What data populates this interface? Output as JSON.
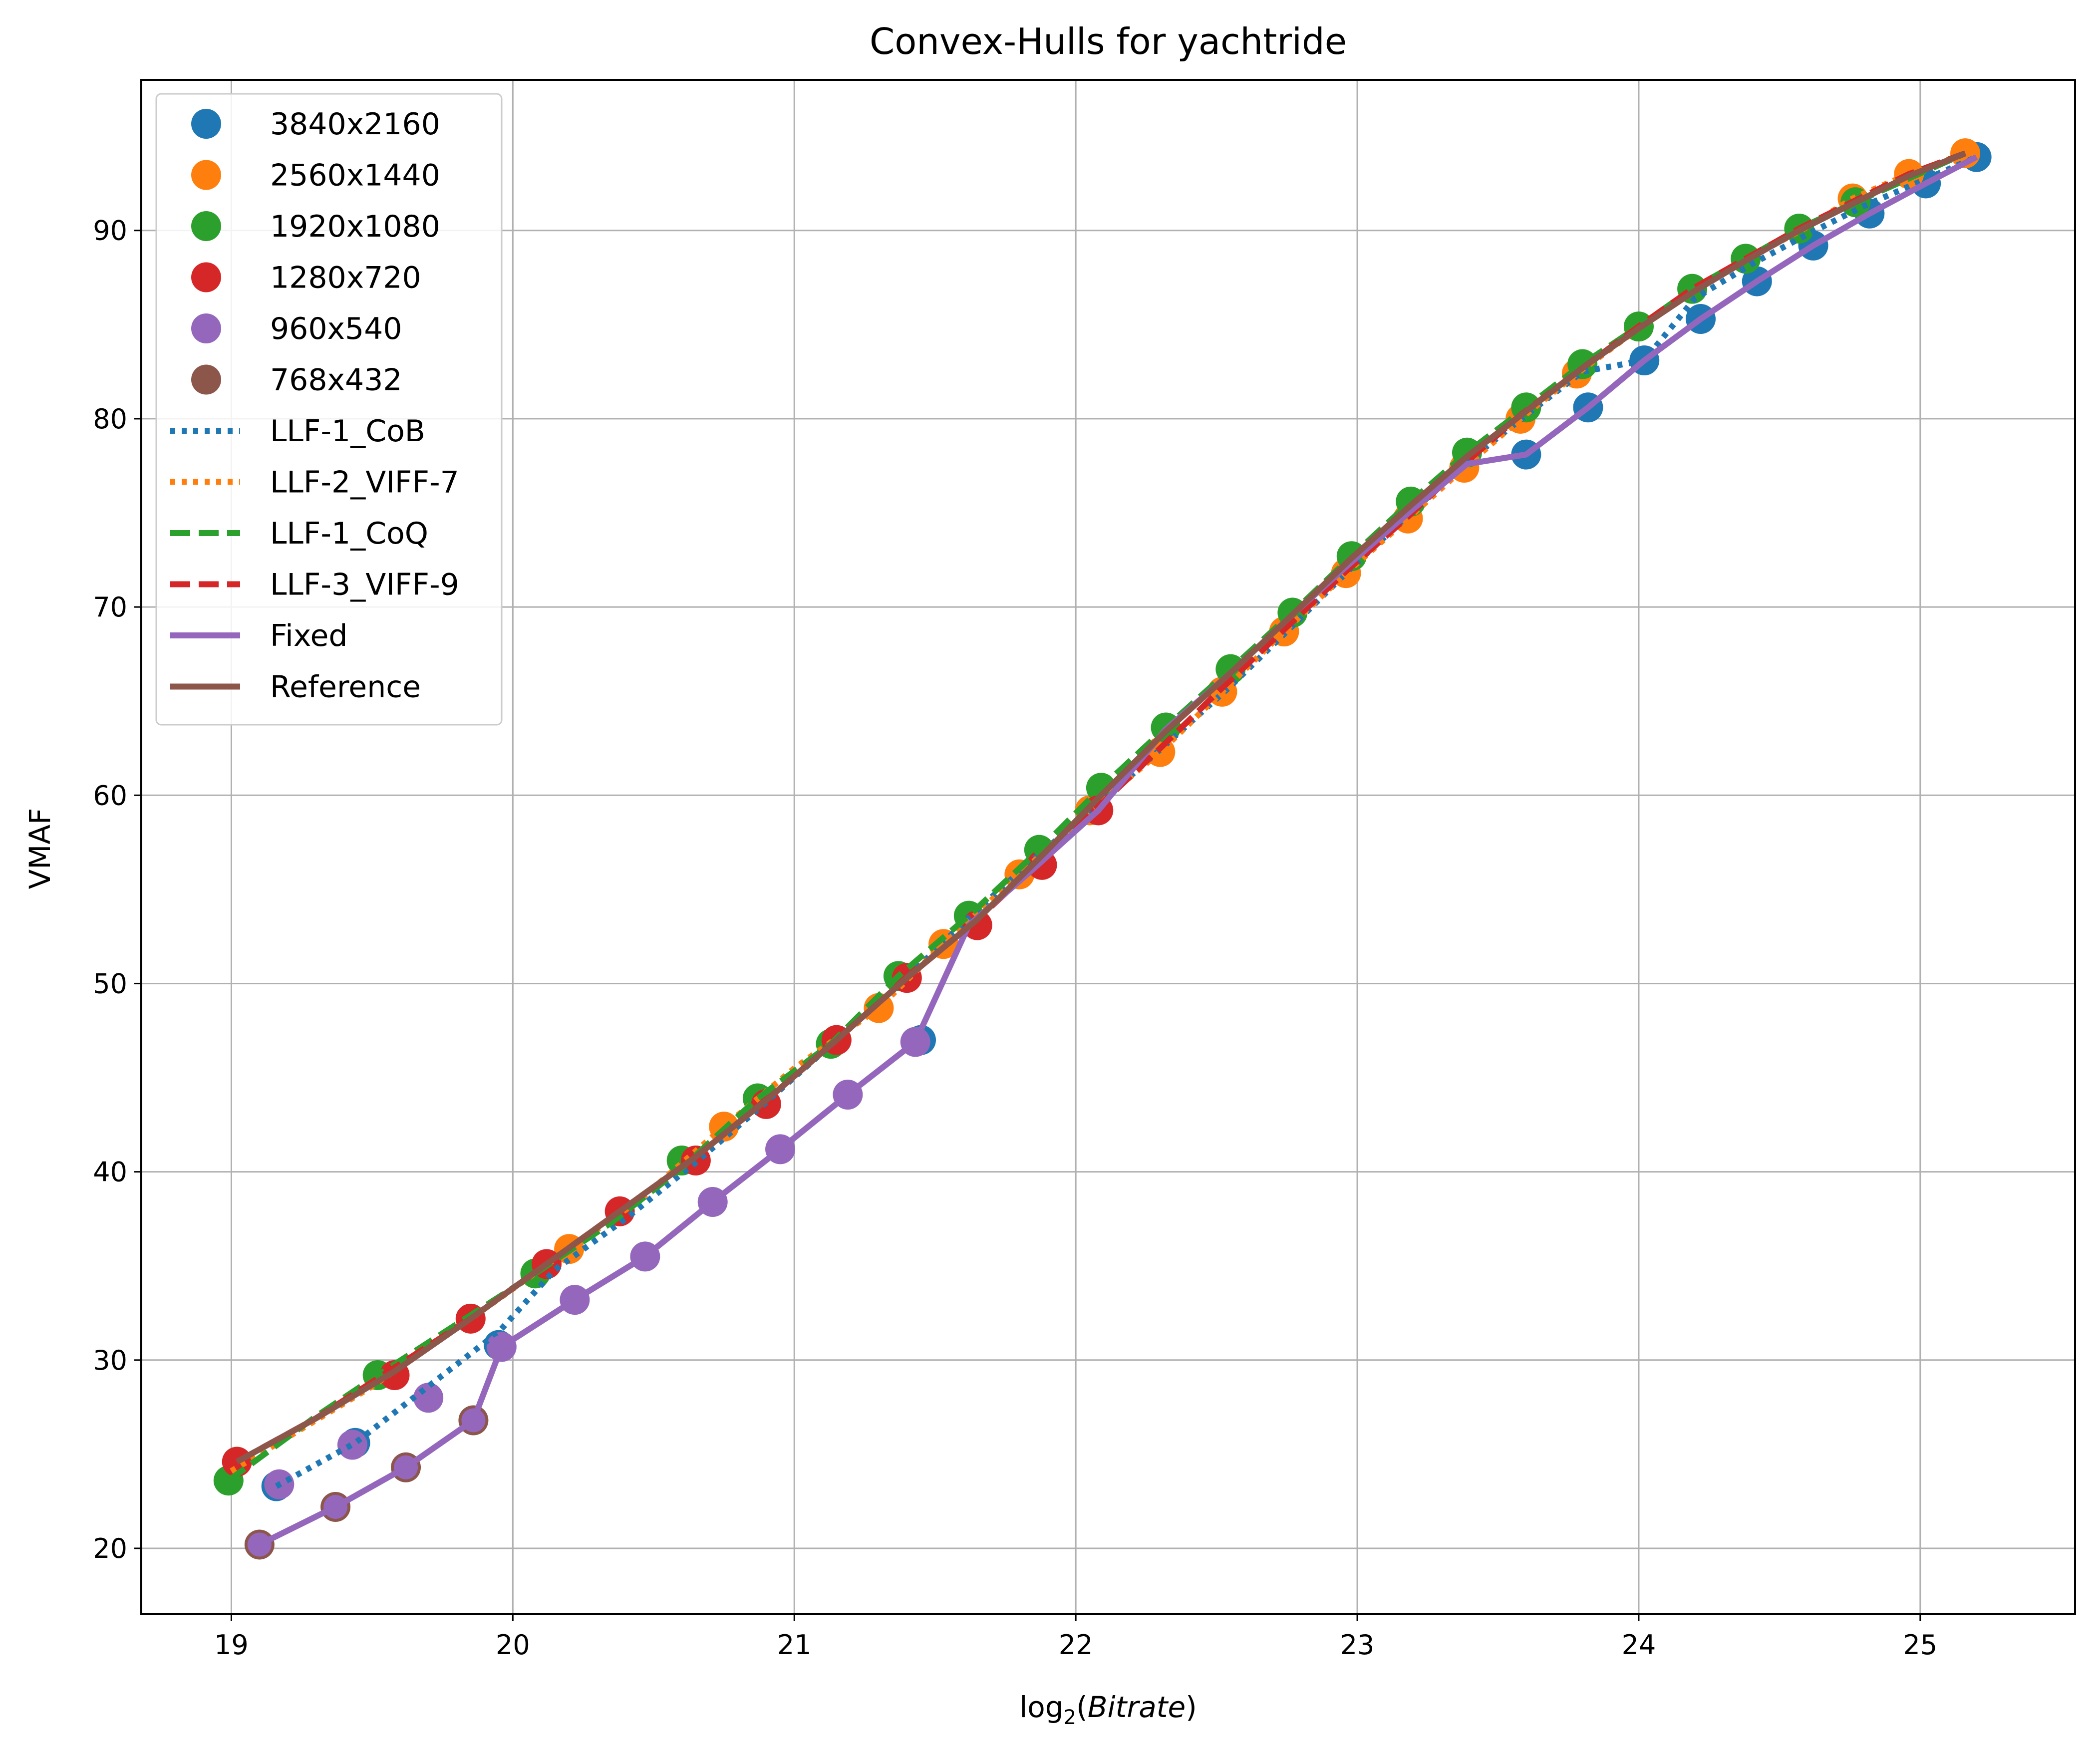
{
  "chart_data": {
    "type": "line",
    "title": "Convex-Hulls for yachtride",
    "xlabel_prefix": "log",
    "xlabel_sub": "2",
    "xlabel_arg": "Bitrate",
    "ylabel": "VMAF",
    "xlim": [
      18.68,
      25.55
    ],
    "ylim": [
      16.5,
      98
    ],
    "xticks": [
      19,
      20,
      21,
      22,
      23,
      24,
      25
    ],
    "yticks": [
      20,
      30,
      40,
      50,
      60,
      70,
      80,
      90
    ],
    "grid": true,
    "legend_position": "upper left",
    "scatter_series": [
      {
        "name": "3840x2160",
        "color": "#1f77b4",
        "points": [
          [
            19.16,
            23.3
          ],
          [
            19.44,
            25.6
          ],
          [
            19.95,
            30.8
          ],
          [
            21.45,
            47.0
          ],
          [
            23.6,
            78.1
          ],
          [
            23.82,
            80.6
          ],
          [
            24.02,
            83.1
          ],
          [
            24.22,
            85.3
          ],
          [
            24.42,
            87.3
          ],
          [
            24.62,
            89.2
          ],
          [
            24.82,
            90.9
          ],
          [
            25.02,
            92.5
          ],
          [
            25.2,
            93.9
          ]
        ]
      },
      {
        "name": "2560x1440",
        "color": "#ff7f0e",
        "points": [
          [
            20.2,
            35.9
          ],
          [
            20.75,
            42.4
          ],
          [
            21.3,
            48.7
          ],
          [
            21.53,
            52.1
          ],
          [
            21.8,
            55.8
          ],
          [
            22.05,
            59.2
          ],
          [
            22.3,
            62.3
          ],
          [
            22.52,
            65.5
          ],
          [
            22.74,
            68.7
          ],
          [
            22.96,
            71.8
          ],
          [
            23.18,
            74.7
          ],
          [
            23.38,
            77.4
          ],
          [
            23.58,
            80.0
          ],
          [
            23.78,
            82.4
          ],
          [
            24.76,
            91.7
          ],
          [
            24.96,
            93.0
          ],
          [
            25.16,
            94.1
          ]
        ]
      },
      {
        "name": "1920x1080",
        "color": "#2ca02c",
        "points": [
          [
            18.99,
            23.6
          ],
          [
            19.52,
            29.2
          ],
          [
            20.08,
            34.6
          ],
          [
            20.6,
            40.6
          ],
          [
            20.87,
            43.9
          ],
          [
            21.13,
            46.8
          ],
          [
            21.37,
            50.4
          ],
          [
            21.62,
            53.6
          ],
          [
            21.87,
            57.1
          ],
          [
            22.09,
            60.4
          ],
          [
            22.32,
            63.6
          ],
          [
            22.55,
            66.7
          ],
          [
            22.77,
            69.7
          ],
          [
            22.98,
            72.7
          ],
          [
            23.19,
            75.6
          ],
          [
            23.39,
            78.2
          ],
          [
            23.6,
            80.6
          ],
          [
            23.8,
            82.9
          ],
          [
            24.0,
            84.9
          ],
          [
            24.19,
            86.9
          ],
          [
            24.38,
            88.5
          ],
          [
            24.57,
            90.1
          ],
          [
            24.77,
            91.5
          ]
        ]
      },
      {
        "name": "1280x720",
        "color": "#d62728",
        "points": [
          [
            19.02,
            24.6
          ],
          [
            19.58,
            29.2
          ],
          [
            19.85,
            32.2
          ],
          [
            20.12,
            35.1
          ],
          [
            20.38,
            37.9
          ],
          [
            20.65,
            40.6
          ],
          [
            20.9,
            43.6
          ],
          [
            21.15,
            47.0
          ],
          [
            21.4,
            50.3
          ],
          [
            21.65,
            53.1
          ],
          [
            21.88,
            56.3
          ],
          [
            22.08,
            59.2
          ]
        ]
      },
      {
        "name": "960x540",
        "color": "#9467bd",
        "points": [
          [
            19.17,
            23.4
          ],
          [
            19.43,
            25.5
          ],
          [
            19.7,
            28.0
          ],
          [
            19.96,
            30.7
          ],
          [
            20.22,
            33.2
          ],
          [
            20.47,
            35.5
          ],
          [
            20.71,
            38.4
          ],
          [
            20.95,
            41.2
          ],
          [
            21.19,
            44.1
          ],
          [
            21.43,
            46.9
          ]
        ]
      },
      {
        "name": "768x432",
        "color": "#8c564b",
        "points": [
          [
            19.1,
            20.2
          ],
          [
            19.37,
            22.2
          ],
          [
            19.62,
            24.3
          ],
          [
            19.86,
            26.8
          ]
        ]
      }
    ],
    "line_series": [
      {
        "name": "LLF-1_CoB",
        "color": "#1f77b4",
        "style": "dotted",
        "points": [
          [
            19.16,
            23.3
          ],
          [
            19.44,
            25.6
          ],
          [
            19.95,
            31.5
          ],
          [
            20.15,
            34.8
          ],
          [
            20.4,
            37.5
          ],
          [
            20.65,
            40.5
          ],
          [
            20.9,
            43.7
          ],
          [
            21.15,
            47.0
          ],
          [
            21.4,
            50.3
          ],
          [
            21.62,
            53.5
          ],
          [
            21.85,
            56.6
          ],
          [
            22.08,
            59.5
          ],
          [
            22.32,
            62.7
          ],
          [
            22.55,
            65.8
          ],
          [
            22.77,
            69.0
          ],
          [
            22.98,
            72.1
          ],
          [
            23.19,
            75.0
          ],
          [
            23.39,
            77.7
          ],
          [
            23.6,
            80.2
          ],
          [
            23.8,
            82.5
          ],
          [
            24.02,
            83.1
          ],
          [
            24.2,
            86.4
          ],
          [
            24.4,
            88.2
          ],
          [
            24.6,
            89.8
          ],
          [
            24.8,
            91.3
          ],
          [
            25.2,
            93.9
          ]
        ]
      },
      {
        "name": "LLF-2_VIFF-7",
        "color": "#ff7f0e",
        "style": "dotted",
        "points": [
          [
            19.0,
            24.1
          ],
          [
            19.5,
            28.6
          ],
          [
            19.85,
            32.2
          ],
          [
            20.2,
            35.9
          ],
          [
            20.45,
            38.5
          ],
          [
            20.75,
            42.4
          ],
          [
            21.0,
            45.5
          ],
          [
            21.3,
            48.7
          ],
          [
            21.53,
            52.1
          ],
          [
            21.8,
            55.8
          ],
          [
            22.05,
            59.2
          ],
          [
            22.3,
            62.3
          ],
          [
            22.52,
            65.5
          ],
          [
            22.74,
            68.7
          ],
          [
            22.96,
            71.8
          ],
          [
            23.18,
            74.7
          ],
          [
            23.38,
            77.4
          ],
          [
            23.58,
            80.0
          ],
          [
            23.78,
            82.4
          ],
          [
            24.0,
            84.8
          ],
          [
            24.2,
            86.8
          ],
          [
            24.4,
            88.6
          ],
          [
            24.6,
            90.2
          ],
          [
            24.76,
            91.7
          ],
          [
            24.96,
            93.0
          ],
          [
            25.16,
            94.1
          ]
        ]
      },
      {
        "name": "LLF-1_CoQ",
        "color": "#2ca02c",
        "style": "dashed",
        "points": [
          [
            18.99,
            23.6
          ],
          [
            19.3,
            27.0
          ],
          [
            19.52,
            29.2
          ],
          [
            20.08,
            34.6
          ],
          [
            20.35,
            37.3
          ],
          [
            20.6,
            40.2
          ],
          [
            20.87,
            43.9
          ],
          [
            21.13,
            46.8
          ],
          [
            21.37,
            50.4
          ],
          [
            21.62,
            53.6
          ],
          [
            21.87,
            57.1
          ],
          [
            22.09,
            60.4
          ],
          [
            22.32,
            63.6
          ],
          [
            22.55,
            66.7
          ],
          [
            22.77,
            69.7
          ],
          [
            22.98,
            72.7
          ],
          [
            23.19,
            75.6
          ],
          [
            23.39,
            78.2
          ],
          [
            23.6,
            80.6
          ],
          [
            23.8,
            82.9
          ],
          [
            24.0,
            84.9
          ],
          [
            24.19,
            86.9
          ],
          [
            24.38,
            88.5
          ],
          [
            24.57,
            90.1
          ],
          [
            24.77,
            91.5
          ],
          [
            25.16,
            94.1
          ]
        ]
      },
      {
        "name": "LLF-3_VIFF-9",
        "color": "#d62728",
        "style": "dashed",
        "points": [
          [
            19.02,
            24.6
          ],
          [
            19.3,
            26.9
          ],
          [
            19.58,
            29.6
          ],
          [
            19.85,
            32.2
          ],
          [
            20.12,
            35.1
          ],
          [
            20.38,
            37.9
          ],
          [
            20.65,
            40.8
          ],
          [
            20.9,
            43.8
          ],
          [
            21.15,
            47.0
          ],
          [
            21.4,
            50.3
          ],
          [
            21.65,
            53.4
          ],
          [
            21.88,
            56.6
          ],
          [
            22.08,
            59.4
          ],
          [
            22.3,
            62.5
          ],
          [
            22.52,
            65.7
          ],
          [
            22.74,
            68.8
          ],
          [
            22.96,
            71.9
          ],
          [
            23.18,
            74.8
          ],
          [
            23.38,
            77.6
          ],
          [
            23.58,
            80.2
          ],
          [
            23.8,
            82.7
          ],
          [
            24.0,
            84.9
          ],
          [
            24.19,
            86.9
          ],
          [
            24.38,
            88.5
          ],
          [
            24.57,
            90.1
          ],
          [
            24.77,
            91.6
          ],
          [
            24.96,
            93.0
          ],
          [
            25.16,
            94.1
          ]
        ]
      },
      {
        "name": "Fixed",
        "color": "#9467bd",
        "style": "solid",
        "points": [
          [
            19.1,
            20.2
          ],
          [
            19.37,
            22.2
          ],
          [
            19.62,
            24.3
          ],
          [
            19.86,
            26.8
          ],
          [
            19.96,
            30.7
          ],
          [
            20.22,
            33.2
          ],
          [
            20.47,
            35.5
          ],
          [
            20.71,
            38.4
          ],
          [
            20.95,
            41.2
          ],
          [
            21.19,
            44.1
          ],
          [
            21.43,
            46.9
          ],
          [
            21.62,
            53.1
          ],
          [
            21.85,
            56.1
          ],
          [
            22.08,
            59.2
          ],
          [
            22.32,
            63.5
          ],
          [
            22.55,
            66.5
          ],
          [
            22.77,
            69.6
          ],
          [
            22.98,
            72.4
          ],
          [
            23.19,
            75.1
          ],
          [
            23.39,
            77.6
          ],
          [
            23.6,
            78.1
          ],
          [
            23.82,
            80.6
          ],
          [
            24.02,
            83.1
          ],
          [
            24.22,
            85.3
          ],
          [
            24.42,
            87.3
          ],
          [
            24.62,
            89.2
          ],
          [
            24.82,
            90.9
          ],
          [
            25.02,
            92.5
          ],
          [
            25.2,
            93.9
          ]
        ]
      },
      {
        "name": "Reference",
        "color": "#8c564b",
        "style": "solid",
        "points": [
          [
            19.02,
            24.6
          ],
          [
            19.3,
            26.9
          ],
          [
            19.58,
            29.4
          ],
          [
            19.85,
            32.2
          ],
          [
            20.12,
            35.1
          ],
          [
            20.38,
            37.9
          ],
          [
            20.65,
            40.8
          ],
          [
            20.9,
            43.8
          ],
          [
            21.15,
            47.0
          ],
          [
            21.4,
            50.3
          ],
          [
            21.65,
            53.4
          ],
          [
            21.88,
            56.8
          ],
          [
            22.09,
            60.0
          ],
          [
            22.32,
            63.4
          ],
          [
            22.55,
            66.5
          ],
          [
            22.77,
            69.6
          ],
          [
            22.98,
            72.6
          ],
          [
            23.19,
            75.4
          ],
          [
            23.39,
            78.0
          ],
          [
            23.6,
            80.4
          ],
          [
            23.8,
            82.7
          ],
          [
            24.0,
            84.8
          ],
          [
            24.19,
            86.7
          ],
          [
            24.38,
            88.4
          ],
          [
            24.57,
            90.0
          ],
          [
            24.77,
            91.5
          ],
          [
            24.96,
            92.9
          ],
          [
            25.16,
            94.1
          ]
        ]
      }
    ]
  }
}
